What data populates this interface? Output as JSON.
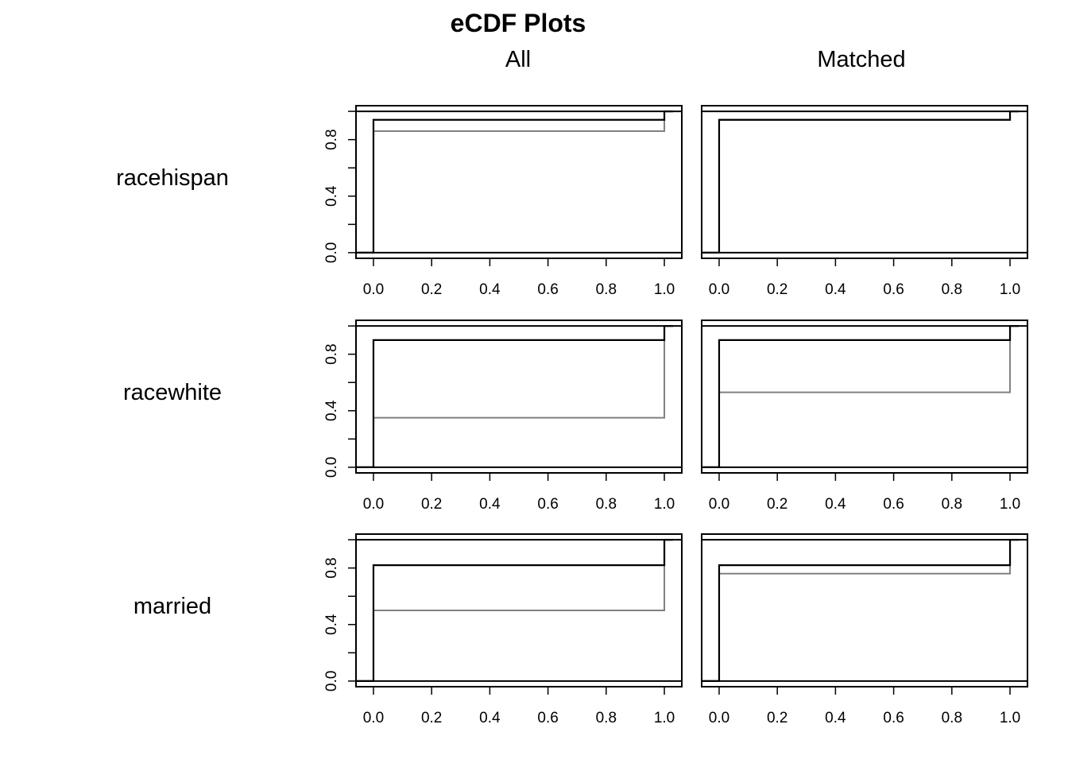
{
  "chart_data": {
    "type": "line",
    "title": "eCDF Plots",
    "columns": [
      "All",
      "Matched"
    ],
    "x_ticks": [
      "0.0",
      "0.2",
      "0.4",
      "0.6",
      "0.8",
      "1.0"
    ],
    "y_ticks": [
      "0.0",
      "0.4",
      "0.8"
    ],
    "xlim": [
      -0.06,
      1.06
    ],
    "ylim": [
      -0.04,
      1.04
    ],
    "colors": {
      "treated": "#000000",
      "control": "#808080"
    },
    "rows": [
      {
        "variable": "racehispan",
        "panels": [
          {
            "column": "All",
            "treated_at_zero": 0.94,
            "control_at_zero": 0.86
          },
          {
            "column": "Matched",
            "treated_at_zero": 0.94,
            "control_at_zero": 0.94
          }
        ]
      },
      {
        "variable": "racewhite",
        "panels": [
          {
            "column": "All",
            "treated_at_zero": 0.9,
            "control_at_zero": 0.35
          },
          {
            "column": "Matched",
            "treated_at_zero": 0.9,
            "control_at_zero": 0.53
          }
        ]
      },
      {
        "variable": "married",
        "panels": [
          {
            "column": "All",
            "treated_at_zero": 0.82,
            "control_at_zero": 0.5
          },
          {
            "column": "Matched",
            "treated_at_zero": 0.82,
            "control_at_zero": 0.76
          }
        ]
      }
    ]
  }
}
